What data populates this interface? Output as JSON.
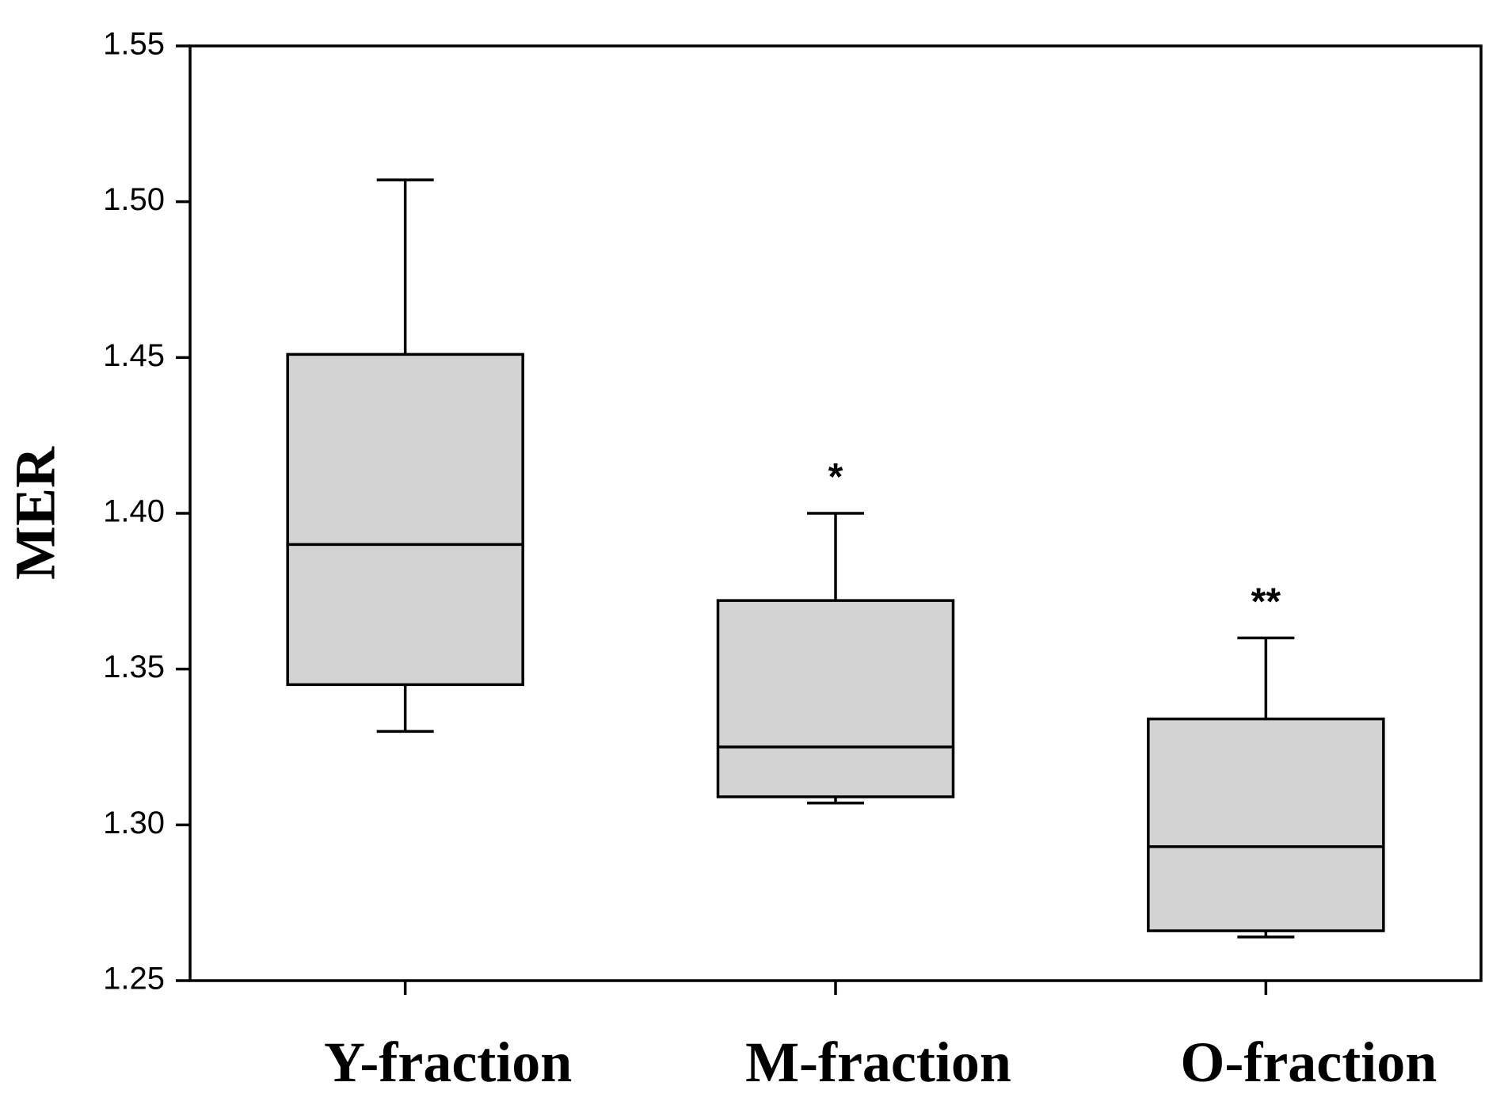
{
  "chart_data": {
    "type": "box",
    "title": "",
    "xlabel": "",
    "ylabel": "MER",
    "ylim": [
      1.25,
      1.55
    ],
    "yticks": [
      1.25,
      1.3,
      1.35,
      1.4,
      1.45,
      1.5,
      1.55
    ],
    "ytick_labels": [
      "1.25",
      "1.30",
      "1.35",
      "1.40",
      "1.45",
      "1.50",
      "1.55"
    ],
    "grid": false,
    "box_fill": "#d3d3d3",
    "line_color": "#000000",
    "categories": [
      "Y-fraction",
      "M-fraction",
      "O-fraction"
    ],
    "boxes": [
      {
        "name": "Y-fraction",
        "whisker_low": 1.33,
        "q1": 1.345,
        "median": 1.39,
        "q3": 1.451,
        "whisker_high": 1.507,
        "annotation": ""
      },
      {
        "name": "M-fraction",
        "whisker_low": 1.307,
        "q1": 1.309,
        "median": 1.325,
        "q3": 1.372,
        "whisker_high": 1.4,
        "annotation": "*"
      },
      {
        "name": "O-fraction",
        "whisker_low": 1.264,
        "q1": 1.266,
        "median": 1.293,
        "q3": 1.334,
        "whisker_high": 1.36,
        "annotation": "**"
      }
    ]
  }
}
